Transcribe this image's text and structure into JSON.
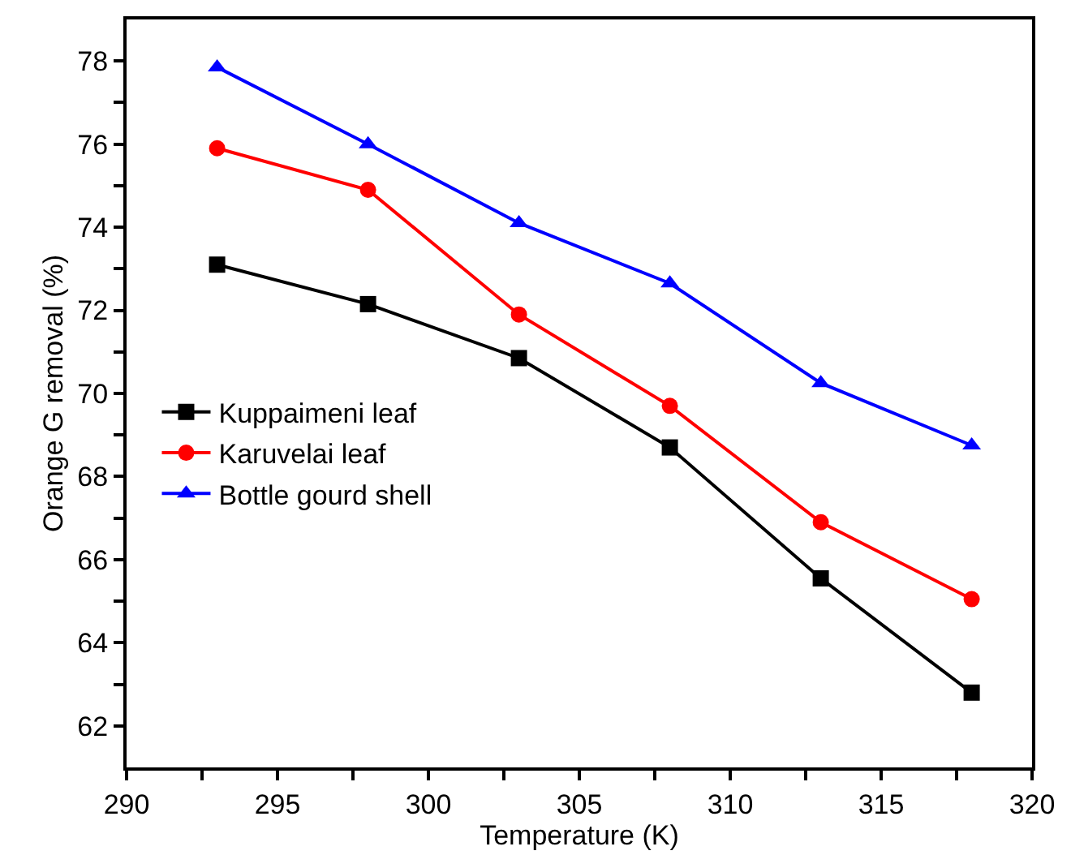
{
  "chart_data": {
    "type": "line",
    "xlabel": "Temperature (K)",
    "ylabel": "Orange G removal (%)",
    "x": [
      293,
      298,
      303,
      308,
      313,
      318
    ],
    "series": [
      {
        "name": "Kuppaimeni leaf",
        "color": "#000000",
        "marker": "square",
        "values": [
          73.1,
          72.15,
          70.85,
          68.7,
          65.55,
          62.8
        ]
      },
      {
        "name": "Karuvelai leaf",
        "color": "#ff0000",
        "marker": "circle",
        "values": [
          75.9,
          74.9,
          71.9,
          69.7,
          66.9,
          65.05
        ]
      },
      {
        "name": "Bottle gourd shell",
        "color": "#0000ff",
        "marker": "triangle",
        "values": [
          77.85,
          76.0,
          74.1,
          72.65,
          70.25,
          68.75
        ]
      }
    ],
    "xlim": [
      290,
      320
    ],
    "xticks": [
      290,
      {
        "value": 292.5,
        "label": null
      },
      295,
      {
        "value": 297.5,
        "label": null
      },
      300,
      {
        "value": 302.5,
        "label": null
      },
      305,
      {
        "value": 307.5,
        "label": null
      },
      310,
      {
        "value": 312.5,
        "label": null
      },
      315,
      {
        "value": 317.5,
        "label": null
      },
      320
    ],
    "ylim": [
      61,
      79
    ],
    "yticks": [
      62,
      {
        "value": 63,
        "label": null
      },
      64,
      {
        "value": 65,
        "label": null
      },
      66,
      {
        "value": 67,
        "label": null
      },
      68,
      {
        "value": 69,
        "label": null
      },
      70,
      {
        "value": 71,
        "label": null
      },
      72,
      {
        "value": 73,
        "label": null
      },
      74,
      {
        "value": 75,
        "label": null
      },
      76,
      {
        "value": 77,
        "label": null
      },
      78
    ],
    "legend": "left",
    "line_style": "solid"
  }
}
